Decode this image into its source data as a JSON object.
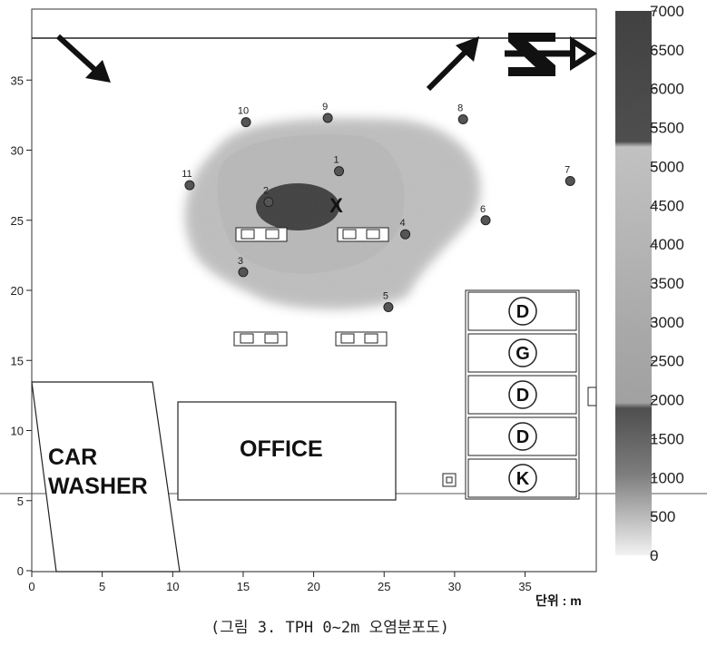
{
  "chart_data": {
    "type": "contour map",
    "caption": "(그림 3. TPH 0~2m 오염분포도)",
    "unit_label": "단위 : m",
    "xlim": [
      0,
      40
    ],
    "ylim": [
      0,
      38
    ],
    "x_ticks": [
      "0",
      "5",
      "10",
      "15",
      "20",
      "25",
      "30",
      "35"
    ],
    "y_ticks": [
      "0",
      "5",
      "10",
      "15",
      "20",
      "25",
      "30",
      "35"
    ],
    "colorbar_ticks": [
      "7000",
      "6500",
      "6000",
      "5500",
      "5000",
      "4500",
      "4000",
      "3500",
      "3000",
      "2500",
      "2000",
      "1500",
      "1000",
      "500",
      "0"
    ],
    "wells": [
      {
        "label": "1",
        "x": 21.8,
        "y": 28.5
      },
      {
        "label": "2",
        "x": 16.8,
        "y": 26.3
      },
      {
        "label": "3",
        "x": 15.0,
        "y": 21.3
      },
      {
        "label": "4",
        "x": 26.5,
        "y": 24.0
      },
      {
        "label": "5",
        "x": 25.3,
        "y": 18.8
      },
      {
        "label": "6",
        "x": 32.2,
        "y": 25.0
      },
      {
        "label": "7",
        "x": 38.2,
        "y": 27.8
      },
      {
        "label": "8",
        "x": 30.6,
        "y": 32.2
      },
      {
        "label": "9",
        "x": 21.0,
        "y": 32.3
      },
      {
        "label": "10",
        "x": 15.2,
        "y": 32.0
      },
      {
        "label": "11",
        "x": 11.2,
        "y": 27.5
      }
    ],
    "marker": {
      "label": "X",
      "x": 21.6,
      "y": 26.1
    },
    "buildings": {
      "office": "OFFICE",
      "car_washer_1": "CAR",
      "car_washer_2": "WASHER"
    },
    "dispensers": [
      "D",
      "G",
      "D",
      "D",
      "K"
    ]
  }
}
